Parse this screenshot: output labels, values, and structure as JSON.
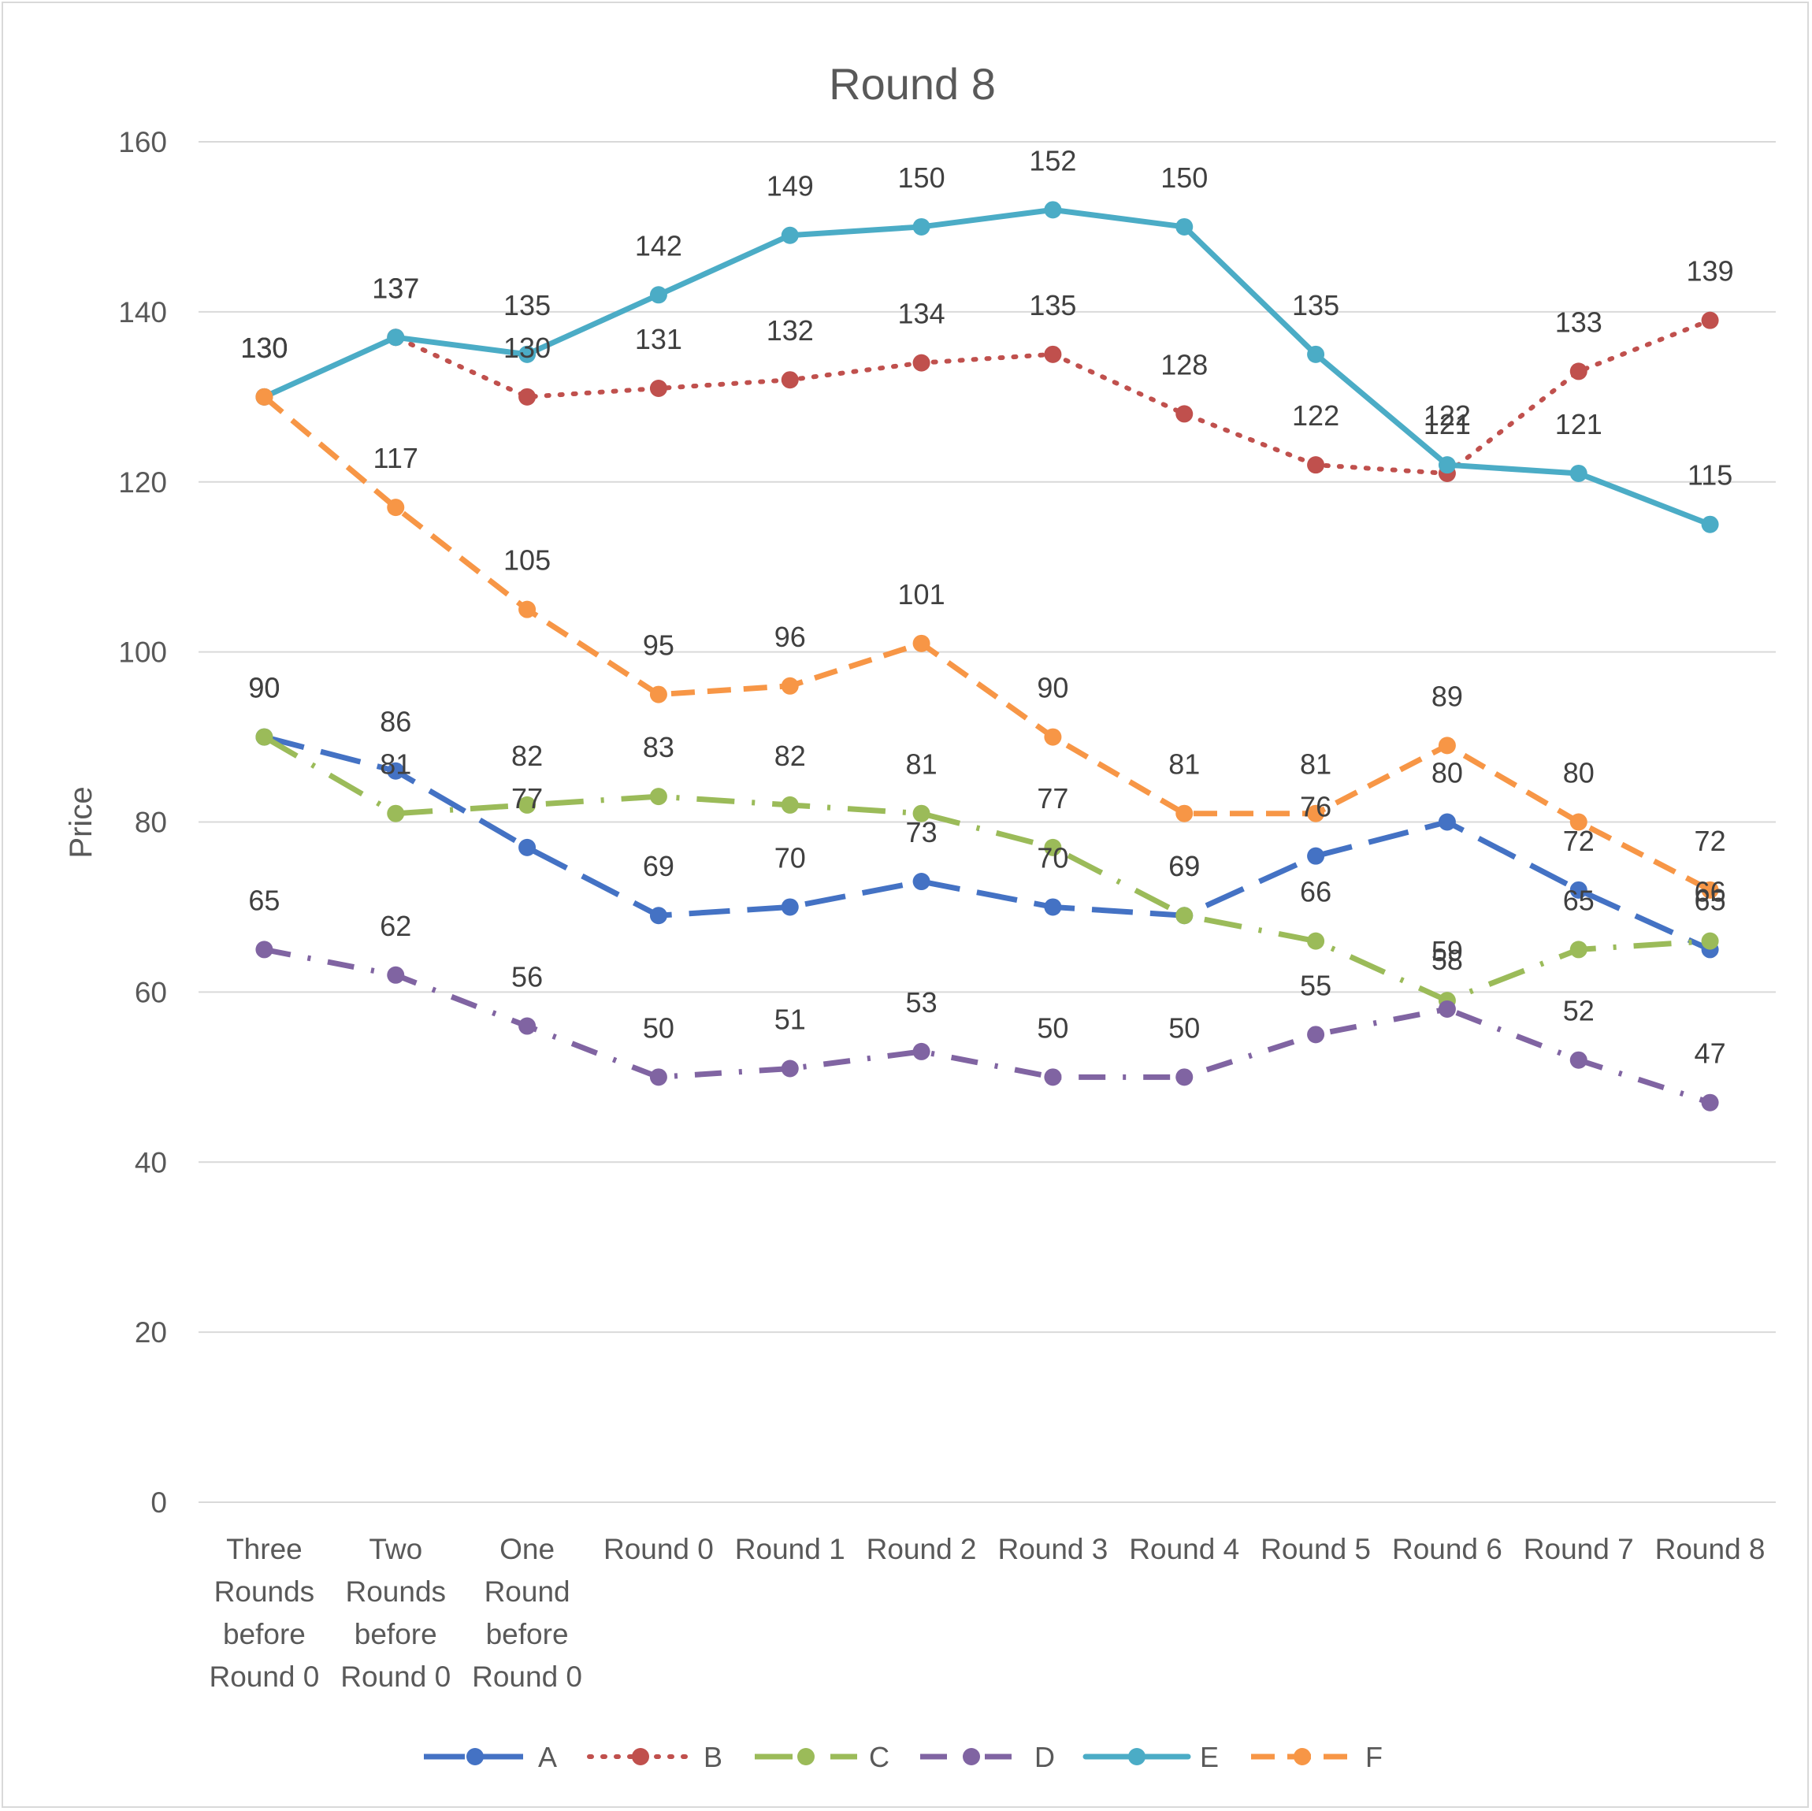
{
  "chart_data": {
    "type": "line",
    "title": "Round 8",
    "xlabel": "",
    "ylabel": "Price",
    "ylim": [
      0,
      160
    ],
    "ytick_step": 20,
    "grid": true,
    "legend_position": "bottom",
    "categories": [
      "Three Rounds before Round 0",
      "Two Rounds before Round 0",
      "One Round before Round 0",
      "Round 0",
      "Round 1",
      "Round 2",
      "Round 3",
      "Round 4",
      "Round 5",
      "Round 6",
      "Round 7",
      "Round 8"
    ],
    "category_lines": [
      [
        "Three",
        "Rounds",
        "before",
        "Round 0"
      ],
      [
        "Two",
        "Rounds",
        "before",
        "Round 0"
      ],
      [
        "One",
        "Round",
        "before",
        "Round 0"
      ],
      [
        "Round 0"
      ],
      [
        "Round 1"
      ],
      [
        "Round 2"
      ],
      [
        "Round 3"
      ],
      [
        "Round 4"
      ],
      [
        "Round 5"
      ],
      [
        "Round 6"
      ],
      [
        "Round 7"
      ],
      [
        "Round 8"
      ]
    ],
    "series": [
      {
        "name": "A",
        "color": "#4472c4",
        "dash": "long-dash",
        "values": [
          90,
          86,
          77,
          69,
          70,
          73,
          70,
          69,
          76,
          80,
          72,
          65
        ]
      },
      {
        "name": "B",
        "color": "#c0504d",
        "dash": "dot",
        "values": [
          130,
          137,
          130,
          131,
          132,
          134,
          135,
          128,
          122,
          121,
          133,
          139
        ]
      },
      {
        "name": "C",
        "color": "#9bbb59",
        "dash": "long-dash-dot",
        "values": [
          90,
          81,
          82,
          83,
          82,
          81,
          77,
          69,
          66,
          59,
          65,
          66
        ]
      },
      {
        "name": "D",
        "color": "#8064a2",
        "dash": "dash-dot",
        "values": [
          65,
          62,
          56,
          50,
          51,
          53,
          50,
          50,
          55,
          58,
          52,
          47
        ]
      },
      {
        "name": "E",
        "color": "#4bacc6",
        "dash": "solid",
        "values": [
          130,
          137,
          135,
          142,
          149,
          150,
          152,
          150,
          135,
          122,
          121,
          115
        ]
      },
      {
        "name": "F",
        "color": "#f79646",
        "dash": "dash",
        "values": [
          130,
          117,
          105,
          95,
          96,
          101,
          90,
          81,
          81,
          89,
          80,
          72
        ]
      }
    ]
  }
}
